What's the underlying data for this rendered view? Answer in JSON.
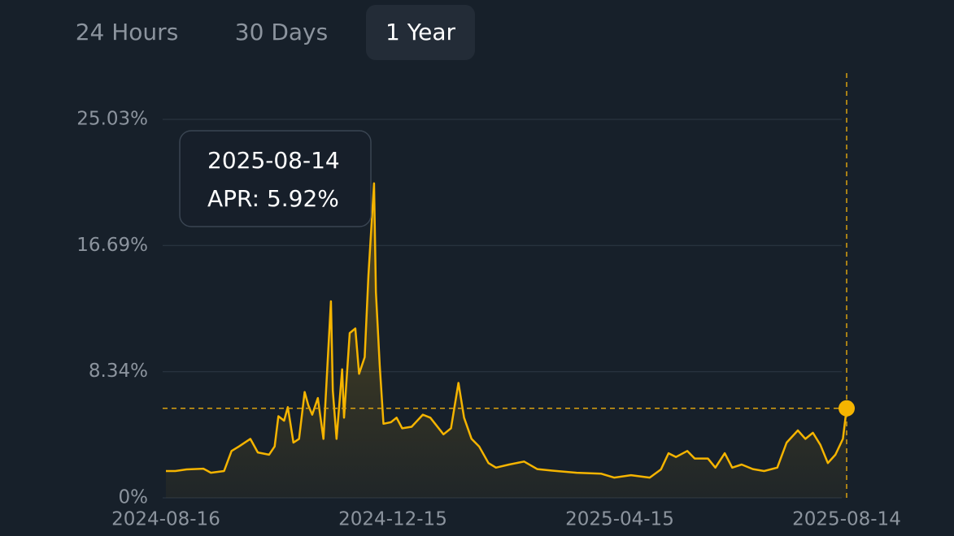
{
  "tabs": [
    {
      "label": "24 Hours",
      "selected": false
    },
    {
      "label": "30 Days",
      "selected": false
    },
    {
      "label": "1 Year",
      "selected": true
    }
  ],
  "chart_data": {
    "type": "line",
    "color": "#f5b400",
    "grid": true,
    "x": [
      "2024-08-16",
      "2024-08-21",
      "2024-08-27",
      "2024-09-05",
      "2024-09-09",
      "2024-09-16",
      "2024-09-20",
      "2024-09-24",
      "2024-09-30",
      "2024-10-04",
      "2024-10-10",
      "2024-10-13",
      "2024-10-15",
      "2024-10-18",
      "2024-10-20",
      "2024-10-23",
      "2024-10-26",
      "2024-10-29",
      "2024-10-31",
      "2024-11-02",
      "2024-11-05",
      "2024-11-08",
      "2024-11-12",
      "2024-11-13",
      "2024-11-15",
      "2024-11-18",
      "2024-11-19",
      "2024-11-22",
      "2024-11-25",
      "2024-11-27",
      "2024-11-30",
      "2024-12-02",
      "2024-12-05",
      "2024-12-06",
      "2024-12-08",
      "2024-12-10",
      "2024-12-14",
      "2024-12-17",
      "2024-12-20",
      "2024-12-25",
      "2024-12-31",
      "2025-01-04",
      "2025-01-11",
      "2025-01-15",
      "2025-01-19",
      "2025-01-22",
      "2025-01-26",
      "2025-01-30",
      "2025-02-04",
      "2025-02-08",
      "2025-02-15",
      "2025-02-23",
      "2025-03-02",
      "2025-03-10",
      "2025-03-23",
      "2025-04-05",
      "2025-04-12",
      "2025-04-21",
      "2025-05-01",
      "2025-05-07",
      "2025-05-11",
      "2025-05-15",
      "2025-05-21",
      "2025-05-25",
      "2025-06-01",
      "2025-06-05",
      "2025-06-10",
      "2025-06-14",
      "2025-06-19",
      "2025-06-25",
      "2025-07-01",
      "2025-07-08",
      "2025-07-13",
      "2025-07-19",
      "2025-07-23",
      "2025-07-27",
      "2025-07-31",
      "2025-08-04",
      "2025-08-08",
      "2025-08-12",
      "2025-08-14"
    ],
    "values": [
      1.77,
      1.77,
      1.88,
      1.93,
      1.66,
      1.77,
      3.1,
      3.4,
      3.9,
      3.0,
      2.85,
      3.4,
      5.4,
      5.1,
      6.0,
      3.65,
      3.9,
      7.0,
      6.1,
      5.5,
      6.6,
      3.9,
      13.0,
      7.1,
      3.9,
      8.5,
      5.3,
      10.9,
      11.2,
      8.2,
      9.3,
      14.7,
      20.8,
      13.6,
      8.75,
      4.9,
      5.0,
      5.3,
      4.6,
      4.7,
      5.5,
      5.3,
      4.2,
      4.6,
      7.6,
      5.3,
      3.9,
      3.4,
      2.3,
      2.0,
      2.2,
      2.4,
      1.9,
      1.8,
      1.66,
      1.6,
      1.34,
      1.5,
      1.34,
      1.88,
      2.95,
      2.7,
      3.1,
      2.6,
      2.6,
      2.0,
      2.95,
      2.0,
      2.2,
      1.9,
      1.77,
      2.0,
      3.65,
      4.46,
      3.9,
      4.3,
      3.5,
      2.3,
      2.85,
      3.9,
      5.92
    ],
    "xlim": [
      "2024-08-16",
      "2025-08-14"
    ],
    "xticks": [
      "2024-08-16",
      "2024-12-15",
      "2025-04-15",
      "2025-08-14"
    ],
    "ylim": [
      0,
      25.03
    ],
    "yticks": [
      {
        "value": 0,
        "label": "0%"
      },
      {
        "value": 8.34,
        "label": "8.34%"
      },
      {
        "value": 16.69,
        "label": "16.69%"
      },
      {
        "value": 25.03,
        "label": "25.03%"
      }
    ],
    "tooltip": {
      "date": "2025-08-14",
      "text": "APR: 5.92%"
    }
  }
}
